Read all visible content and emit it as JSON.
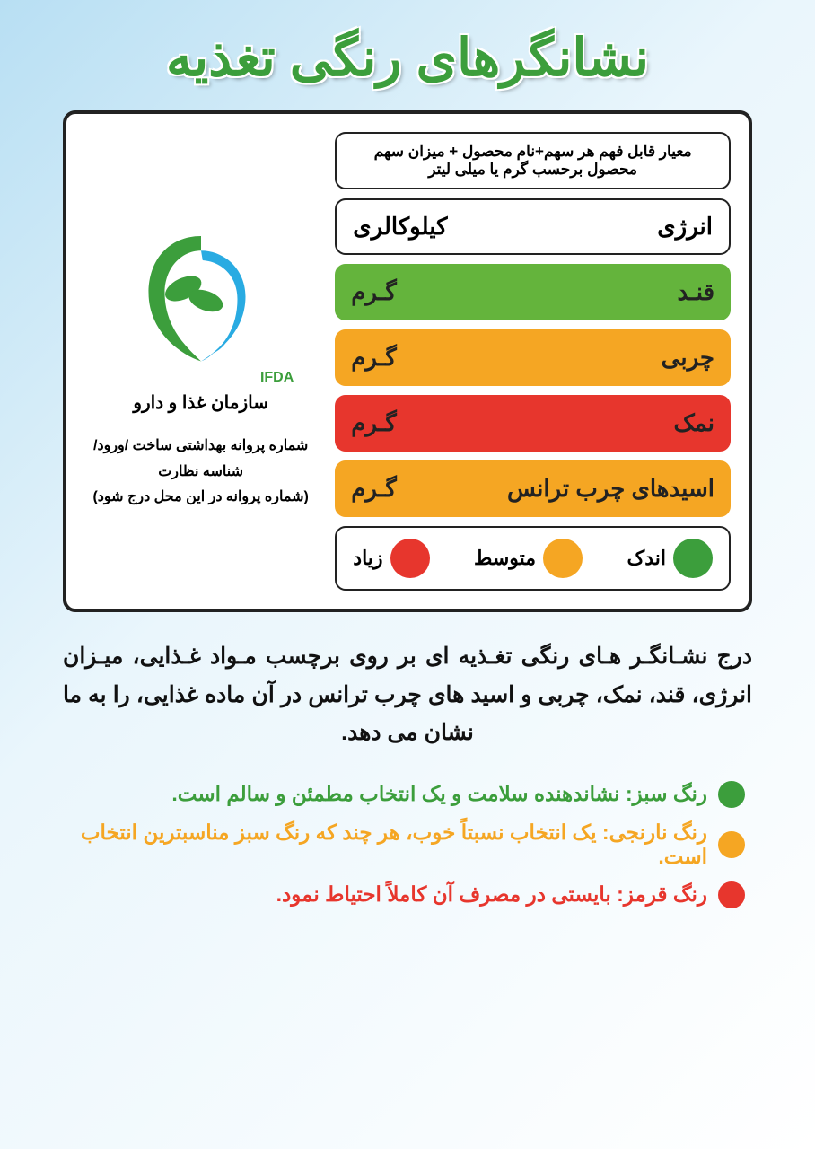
{
  "title": "نشانگرهای رنگی تغذیه",
  "colors": {
    "green": "#64b43c",
    "orange": "#f5a623",
    "red": "#e7362d",
    "legend_green": "#3c9e3c",
    "text_green": "#3c9e3c",
    "text_orange": "#f5a623",
    "text_red": "#e7362d"
  },
  "label": {
    "header": "معیار قابل فهم هر سهم+نام محصول + میزان سهم محصول برحسب   گرم یا میلی لیتر",
    "energy_name": "انرژی",
    "energy_unit": "کیلوکالری",
    "rows": [
      {
        "name": "قنـد",
        "unit": "گـرم",
        "colorKey": "green"
      },
      {
        "name": "چربی",
        "unit": "گـرم",
        "colorKey": "orange"
      },
      {
        "name": "نمک",
        "unit": "گـرم",
        "colorKey": "red"
      },
      {
        "name": "اسیدهای چرب ترانس",
        "unit": "گـرم",
        "colorKey": "orange"
      }
    ],
    "legend": {
      "low": "اندک",
      "mid": "متوسط",
      "high": "زیاد"
    }
  },
  "left": {
    "ifda": "IFDA",
    "org": "سازمان غذا و دارو",
    "license1": "شماره پروانه بهداشتی ساخت /ورود/شناسه نظارت",
    "license2": "(شماره پروانه در این محل درج شود)"
  },
  "description": "درج نشـانگـر هـای رنگی تغـذیه ای بر روی برچسب مـواد غـذایی، میـزان انرژی، قند، نمک، چربی و اسید های چرب ترانس در آن ماده غذایی، را به ما نشان می دهد.",
  "explain": [
    {
      "text": "رنگ سبز: نشاندهنده سلامت و یک انتخاب مطمئن و سالم است.",
      "colorKey": "legend_green",
      "textColorKey": "text_green"
    },
    {
      "text": "رنگ نارنجی: یک انتخاب نسبتاً خوب، هر چند که رنگ سبز مناسبترین انتخاب است.",
      "colorKey": "orange",
      "textColorKey": "text_orange"
    },
    {
      "text": "رنگ قرمز: بایستی در مصرف آن کاملاً احتیاط نمود.",
      "colorKey": "red",
      "textColorKey": "text_red"
    }
  ]
}
